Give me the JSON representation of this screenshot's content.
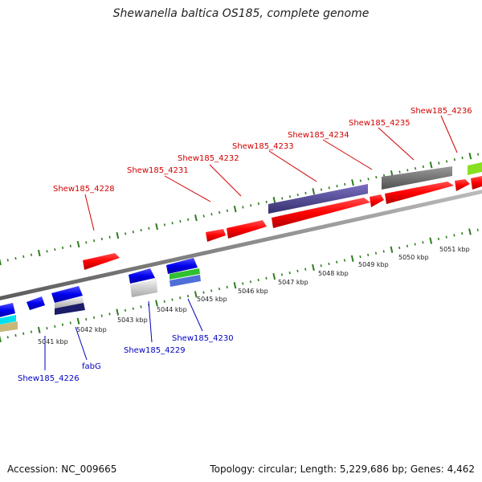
{
  "title": "Shewanella baltica OS185, complete genome",
  "footer": {
    "accession": "Accession: NC_009665",
    "topology": "Topology: circular; Length: 5,229,686 bp; Genes: 4,462"
  },
  "colors": {
    "backbone": "#8a8a8a",
    "tick": "#2e7d1e",
    "forward_label": "#d10000",
    "reverse_label": "#0000c0"
  },
  "kbp_labels": [
    "5041 kbp",
    "5042 kbp",
    "5043 kbp",
    "5044 kbp",
    "5045 kbp",
    "5046 kbp",
    "5047 kbp",
    "5048 kbp",
    "5049 kbp",
    "5050 kbp",
    "5051 kbp"
  ],
  "forward_genes": [
    "Shew185_4228",
    "Shew185_4231",
    "Shew185_4232",
    "Shew185_4233",
    "Shew185_4234",
    "Shew185_4235",
    "Shew185_4236"
  ],
  "reverse_genes": [
    "Shew185_4226",
    "fabG",
    "Shew185_4229",
    "Shew185_4230"
  ]
}
